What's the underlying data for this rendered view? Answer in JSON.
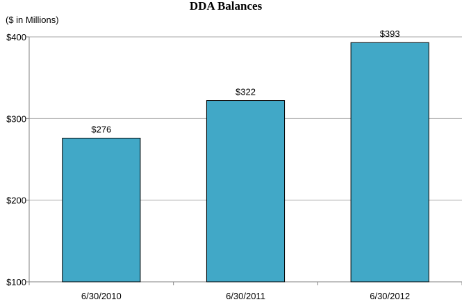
{
  "chart_data": {
    "type": "bar",
    "title": "DDA Balances",
    "subtitle": "($ in Millions)",
    "categories": [
      "6/30/2010",
      "6/30/2011",
      "6/30/2012"
    ],
    "values": [
      276,
      322,
      393
    ],
    "value_labels": [
      "$276",
      "$322",
      "$393"
    ],
    "ylim": [
      100,
      400
    ],
    "yticks": [
      100,
      200,
      300,
      400
    ],
    "ytick_labels": [
      "$100",
      "$200",
      "$300",
      "$400"
    ],
    "xlabel": "",
    "ylabel": "",
    "grid": true,
    "legend": "none",
    "bar_color": "#41A8C7",
    "bar_edge_color": "#000000",
    "grid_color": "#A6A6A6"
  }
}
